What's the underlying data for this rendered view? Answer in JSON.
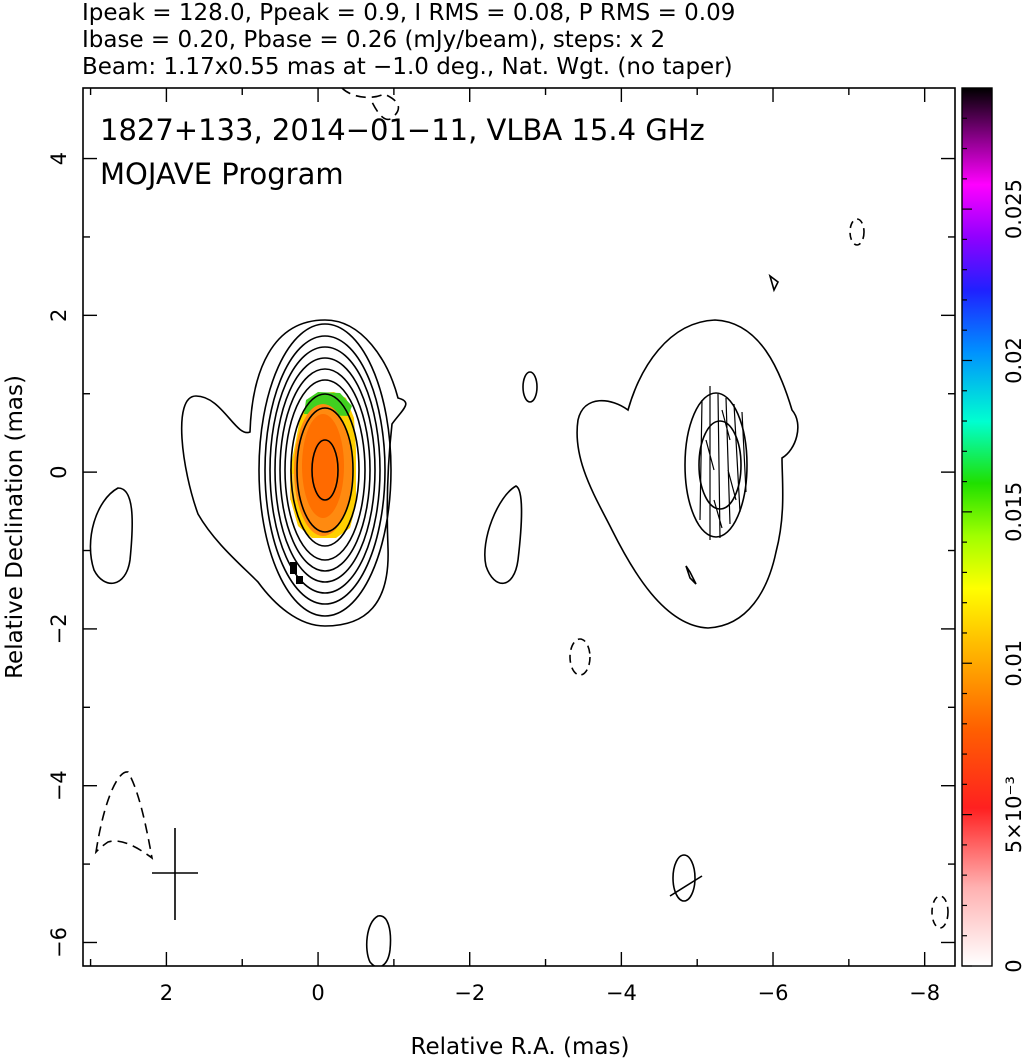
{
  "header": {
    "line1": "Ipeak = 128.0, Ppeak = 0.9, I RMS = 0.08, P RMS = 0.09",
    "line2": "Ibase = 0.20, Pbase = 0.26 (mJy/beam), steps: x 2",
    "line3": "Beam: 1.17x0.55 mas at −1.0 deg., Nat. Wgt. (no taper)"
  },
  "chart_data": {
    "type": "heatmap",
    "annotation_line1": "1827+133, 2014−01−11, VLBA 15.4 GHz",
    "annotation_line2": "MOJAVE Program",
    "xlabel": "Relative R.A. (mas)",
    "ylabel": "Relative Declination (mas)",
    "xlim": [
      3.1,
      -8.4
    ],
    "ylim": [
      -6.3,
      4.9
    ],
    "x_ticks": [
      2,
      0,
      -2,
      -4,
      -6,
      -8
    ],
    "x_tick_labels": [
      "2",
      "0",
      "−2",
      "−4",
      "−6",
      "−8"
    ],
    "y_ticks": [
      4,
      2,
      0,
      -2,
      -4,
      -6
    ],
    "y_tick_labels": [
      "4",
      "2",
      "0",
      "−2",
      "−4",
      "−6"
    ],
    "colorbar": {
      "range": [
        0,
        0.029
      ],
      "tick_values": [
        0,
        0.005,
        0.01,
        0.015,
        0.02,
        0.025
      ],
      "tick_labels": [
        "0",
        "5×10⁻³",
        "0.01",
        "0.015",
        "0.02",
        "0.025"
      ]
    },
    "core": {
      "x": 0,
      "y": 0
    },
    "components": [
      {
        "x": -4.95,
        "y": 0.05
      }
    ],
    "beam_cross": {
      "x": 2.0,
      "y": -5.1
    }
  },
  "colors": {
    "contour": "#000000",
    "axes": "#000000"
  }
}
